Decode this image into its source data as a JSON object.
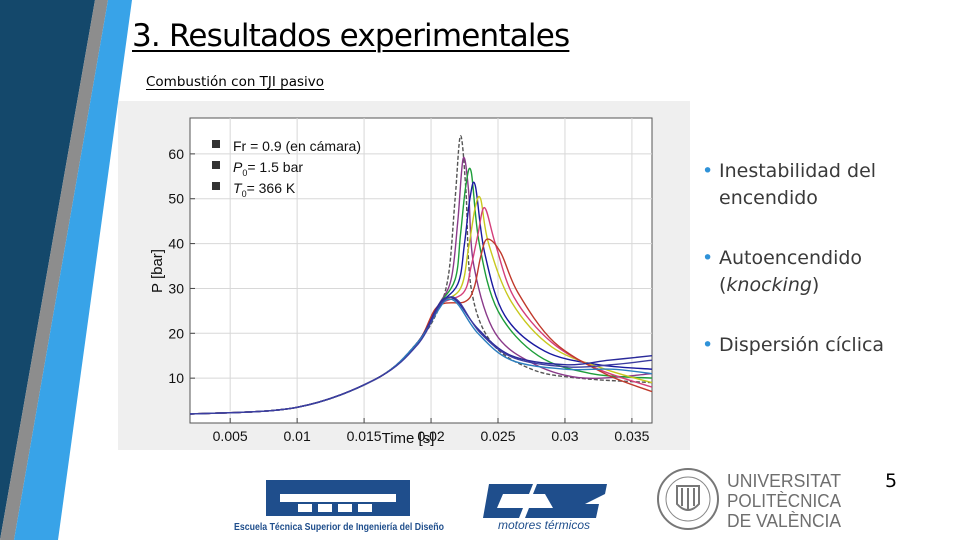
{
  "slide": {
    "title": "3. Resultados experimentales",
    "subtitle": "Combustión con TJI pasivo",
    "page_number": "5"
  },
  "bullets": [
    {
      "text": "Inestabilidad del",
      "text2": "encendido"
    },
    {
      "text": "Autoencendido",
      "text2_pre": "(",
      "text2_em": "knocking",
      "text2_post": ")"
    },
    {
      "text": "Dispersión cíclica"
    }
  ],
  "logos": {
    "etsid_text": "Escuela Técnica Superior de Ingeniería del Diseño",
    "cmt_text": "motores térmicos",
    "upv_line1": "UNIVERSITAT",
    "upv_line2": "POLITÈCNICA",
    "upv_line3": "DE VALÈNCIA"
  },
  "colors": {
    "accent_dark": "#14486b",
    "accent_light": "#38a3e8",
    "accent_gray": "#8d8d8d",
    "bullet": "#2f92d8"
  },
  "chart_data": {
    "type": "line",
    "title": "",
    "xlabel": "Time [s]",
    "ylabel": "P [bar]",
    "xlim": [
      0.002,
      0.0365
    ],
    "ylim": [
      0,
      68
    ],
    "xticks": [
      0.005,
      0.01,
      0.015,
      0.02,
      0.025,
      0.03,
      0.035
    ],
    "xtick_labels": [
      "0.005",
      "0.01",
      "0.015",
      "0.02",
      "0.025",
      "0.03",
      "0.035"
    ],
    "yticks": [
      10,
      20,
      30,
      40,
      50,
      60
    ],
    "ytick_labels": [
      "10",
      "20",
      "30",
      "40",
      "50",
      "60"
    ],
    "legend_position": "top-left",
    "legend": [
      {
        "label": "Fr = 0.9 (en cámara)"
      },
      {
        "label_sym": "P",
        "label_sub": "0",
        "label_rest": "= 1.5 bar"
      },
      {
        "label_sym": "T",
        "label_sub": "0",
        "label_rest": "= 366 K"
      }
    ],
    "series": [
      {
        "color": "#555555",
        "dashed": true,
        "x": [
          0.002,
          0.01,
          0.016,
          0.019,
          0.0205,
          0.0213,
          0.0218,
          0.0222,
          0.0226,
          0.023,
          0.0245,
          0.0275,
          0.031,
          0.0365
        ],
        "y": [
          2,
          3.5,
          10,
          18,
          25,
          33,
          50,
          64,
          52,
          30,
          18,
          12,
          10,
          9
        ]
      },
      {
        "color": "#8a3a8a",
        "dashed": false,
        "x": [
          0.002,
          0.01,
          0.016,
          0.019,
          0.0205,
          0.0215,
          0.022,
          0.0224,
          0.0228,
          0.0232,
          0.0248,
          0.0278,
          0.0315,
          0.0365
        ],
        "y": [
          2,
          3.5,
          10,
          18,
          26,
          32,
          45,
          59,
          52,
          35,
          20,
          13,
          10,
          11
        ]
      },
      {
        "color": "#1e9e3a",
        "dashed": false,
        "x": [
          0.002,
          0.01,
          0.016,
          0.019,
          0.0205,
          0.0218,
          0.0222,
          0.0226,
          0.023,
          0.0236,
          0.025,
          0.028,
          0.032,
          0.0365
        ],
        "y": [
          2,
          3.5,
          10,
          18,
          26,
          32,
          42,
          53,
          56,
          40,
          25,
          15,
          11,
          10
        ]
      },
      {
        "color": "#1a1aa0",
        "dashed": false,
        "x": [
          0.002,
          0.01,
          0.016,
          0.019,
          0.0205,
          0.022,
          0.0225,
          0.0229,
          0.0233,
          0.024,
          0.0255,
          0.0285,
          0.0325,
          0.0365
        ],
        "y": [
          2,
          3.5,
          10,
          18,
          26,
          31,
          40,
          50,
          53,
          38,
          24,
          16,
          13,
          12
        ]
      },
      {
        "color": "#c8c81e",
        "dashed": false,
        "x": [
          0.002,
          0.01,
          0.016,
          0.019,
          0.0205,
          0.0222,
          0.0228,
          0.0233,
          0.0237,
          0.0243,
          0.026,
          0.029,
          0.033,
          0.0365
        ],
        "y": [
          2,
          3.5,
          10,
          18,
          26,
          30,
          39,
          48,
          50,
          40,
          27,
          17,
          12,
          9
        ]
      },
      {
        "color": "#d43f7a",
        "dashed": false,
        "x": [
          0.002,
          0.01,
          0.016,
          0.019,
          0.0205,
          0.0224,
          0.023,
          0.0235,
          0.024,
          0.0248,
          0.0262,
          0.029,
          0.0325,
          0.0365
        ],
        "y": [
          2,
          3.5,
          10,
          18,
          26,
          29,
          35,
          42,
          48,
          40,
          28,
          18,
          12,
          8
        ]
      },
      {
        "color": "#c0392b",
        "dashed": false,
        "x": [
          0.002,
          0.01,
          0.016,
          0.019,
          0.0205,
          0.0225,
          0.0232,
          0.0237,
          0.0242,
          0.0252,
          0.0265,
          0.0292,
          0.033,
          0.0365
        ],
        "y": [
          2,
          3.5,
          10,
          18,
          26,
          27,
          30,
          37,
          41,
          38,
          29,
          18,
          11,
          7
        ]
      },
      {
        "color": "#2a2a9a",
        "dashed": false,
        "x": [
          0.002,
          0.01,
          0.016,
          0.019,
          0.0205,
          0.0212,
          0.022,
          0.0235,
          0.026,
          0.03,
          0.0333,
          0.0365
        ],
        "y": [
          2,
          3.5,
          10,
          18,
          26,
          28,
          27,
          21,
          15,
          13,
          14,
          15
        ]
      },
      {
        "color": "#2c7fbf",
        "dashed": false,
        "x": [
          0.002,
          0.01,
          0.016,
          0.019,
          0.0205,
          0.0212,
          0.022,
          0.0235,
          0.026,
          0.03,
          0.0335,
          0.0365
        ],
        "y": [
          2,
          3.5,
          10,
          18,
          25,
          27.5,
          26.5,
          20,
          14,
          12,
          12,
          11
        ]
      },
      {
        "color": "#3c3ca0",
        "dashed": false,
        "x": [
          0.002,
          0.01,
          0.016,
          0.019,
          0.0205,
          0.0213,
          0.0221,
          0.0237,
          0.0262,
          0.0302,
          0.0335,
          0.0365
        ],
        "y": [
          2,
          3.5,
          10,
          17.5,
          25.5,
          28,
          27,
          20,
          14.5,
          12.5,
          13,
          14
        ]
      }
    ]
  }
}
